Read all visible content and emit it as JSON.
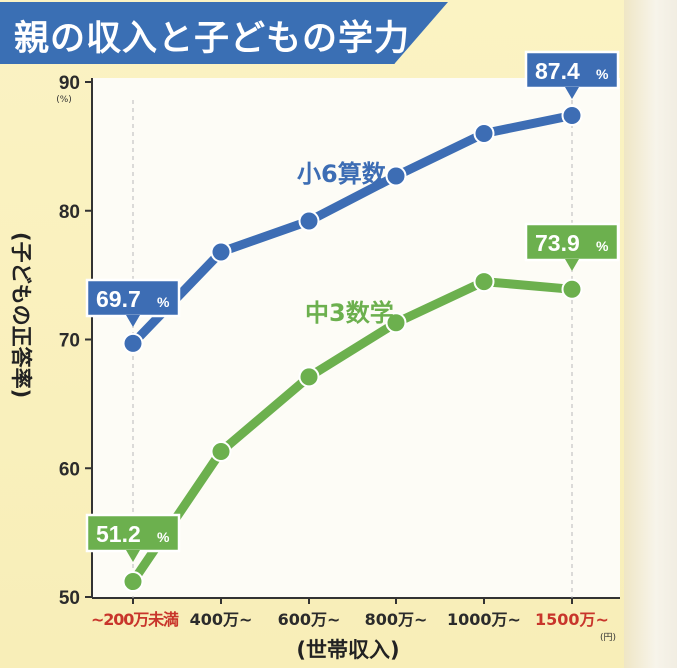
{
  "title": "親の収入と子どもの学力",
  "chart_data": {
    "type": "line",
    "categories": [
      "~200万未満",
      "400万~",
      "600万~",
      "800万~",
      "1000万~",
      "1500万~"
    ],
    "series": [
      {
        "name": "小6算数",
        "color": "#3d6db4",
        "values": [
          69.7,
          76.8,
          79.2,
          82.7,
          86.0,
          87.4
        ]
      },
      {
        "name": "中3数学",
        "color": "#6cb04e",
        "values": [
          51.2,
          61.3,
          67.1,
          71.3,
          74.5,
          73.9
        ]
      }
    ],
    "ylim": [
      50,
      90
    ],
    "yticks": [
      50,
      60,
      70,
      80,
      90
    ],
    "y_unit": "(%)",
    "x_unit": "(円)",
    "ylabel": "(子どもの正答率)",
    "xlabel": "(世帯収入)",
    "highlighted_categories": [
      "~200万未満",
      "1500万~"
    ],
    "callouts": [
      {
        "series": 0,
        "index": 0,
        "text": "69.7"
      },
      {
        "series": 0,
        "index": 5,
        "text": "87.4"
      },
      {
        "series": 1,
        "index": 0,
        "text": "51.2"
      },
      {
        "series": 1,
        "index": 5,
        "text": "73.9"
      }
    ],
    "callout_suffix": "%",
    "grid": false,
    "legend": "inline labels"
  }
}
